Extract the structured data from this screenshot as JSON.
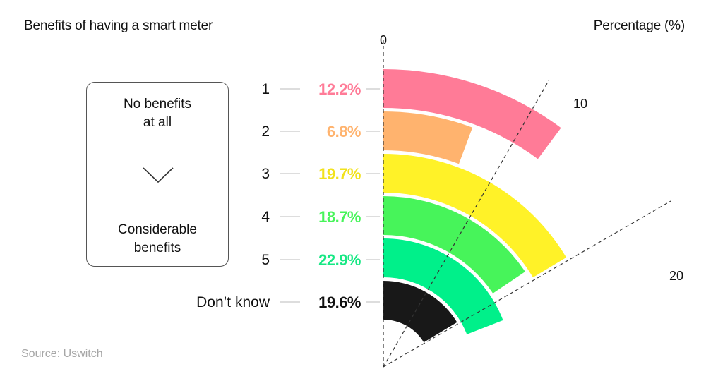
{
  "header": {
    "title": "Benefits of having a smart meter",
    "unit_label": "Percentage (%)"
  },
  "legend": {
    "top_line1": "No benefits",
    "top_line2": "at all",
    "bottom_line1": "Considerable",
    "bottom_line2": "benefits",
    "arrow_icon": "chevron-down-icon"
  },
  "source": "Source: Uswitch",
  "chart_data": {
    "type": "radial-bar",
    "title": "Benefits of having a smart meter",
    "value_axis_label": "Percentage (%)",
    "axis_ticks": [
      "0",
      "10",
      "20"
    ],
    "axis_tick_values": [
      0,
      10,
      20
    ],
    "categories": [
      "1",
      "2",
      "3",
      "4",
      "5",
      "Don’t know"
    ],
    "values": [
      12.2,
      6.8,
      19.7,
      18.7,
      22.9,
      19.6
    ],
    "value_labels": [
      "12.2%",
      "6.8%",
      "19.7%",
      "18.7%",
      "22.9%",
      "19.6%"
    ],
    "colors": [
      "#ff7b97",
      "#ffb36e",
      "#fff228",
      "#47f45a",
      "#00f08a",
      "#181818"
    ],
    "label_colors": [
      "#ff7b97",
      "#ffb36e",
      "#f2e21c",
      "#47f45a",
      "#17e884",
      "#111111"
    ],
    "max_value": 30,
    "legend_note": "1 = No benefits at all, 5 = Considerable benefits"
  }
}
